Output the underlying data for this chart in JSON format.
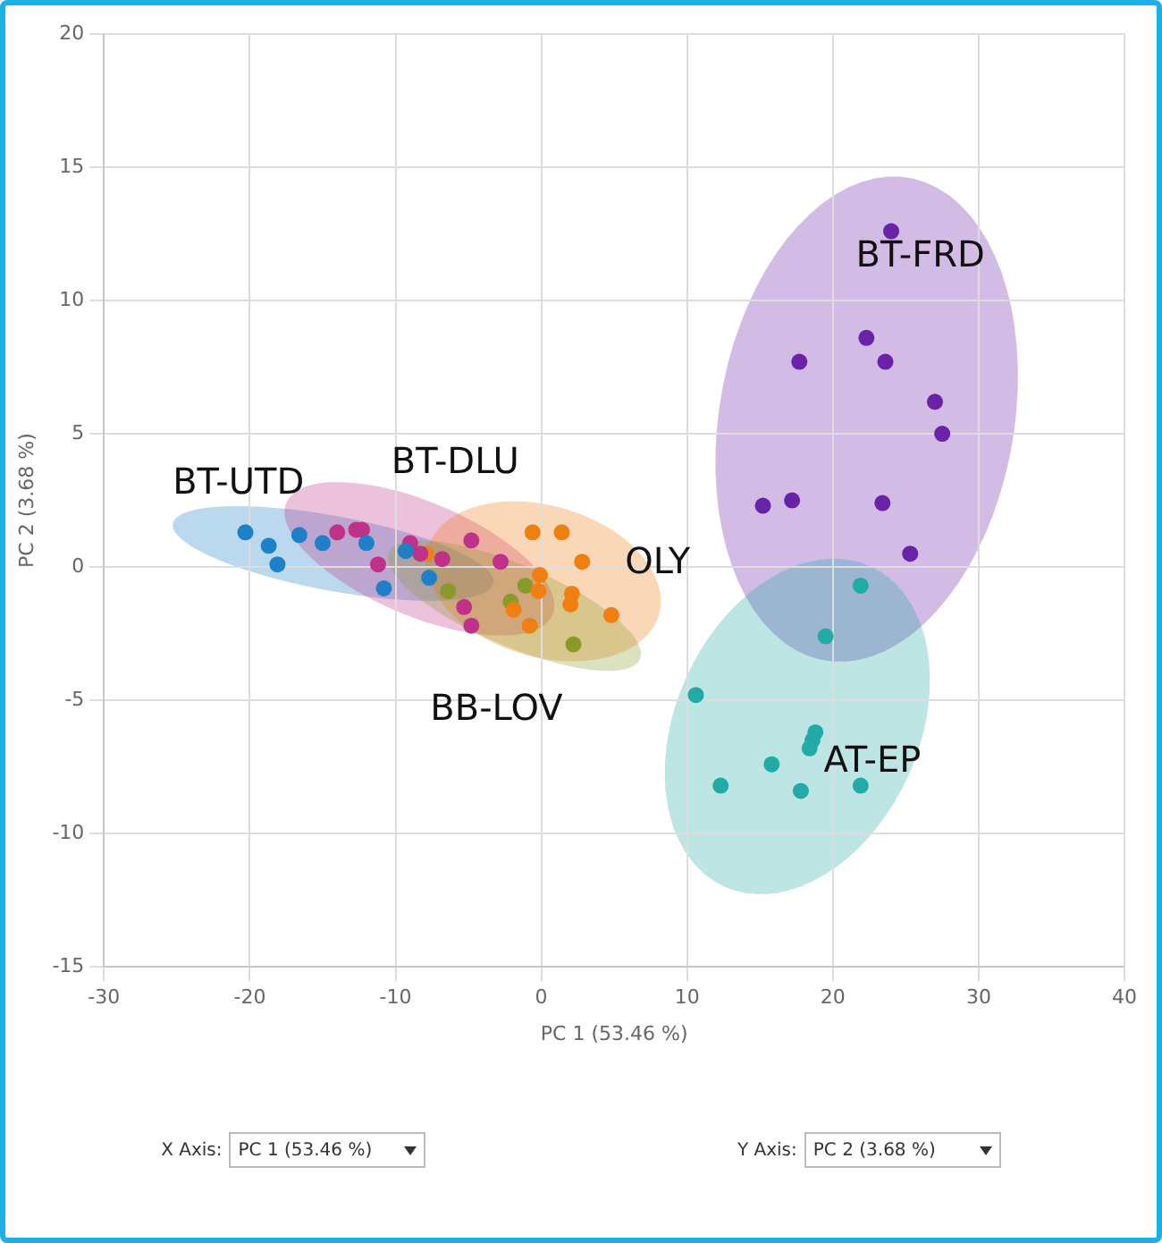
{
  "chart_data": {
    "type": "scatter",
    "xlabel": "PC 1 (53.46 %)",
    "ylabel": "PC 2 (3.68 %)",
    "xlim": [
      -30,
      40
    ],
    "xticks": [
      -30,
      -20,
      -10,
      0,
      10,
      20,
      30,
      40
    ],
    "ylim": [
      -15,
      20
    ],
    "yticks": [
      -15,
      -10,
      -5,
      0,
      5,
      10,
      15,
      20
    ],
    "grid": true,
    "legend": false,
    "marker": "circle",
    "series": [
      {
        "name": "BT-UTD",
        "color": "#1f80c8",
        "x": [
          -20.3,
          -18.7,
          -18.1,
          -16.6,
          -15.0,
          -12.0,
          -10.8,
          -7.7,
          -9.3
        ],
        "values": [
          1.3,
          0.8,
          0.1,
          1.2,
          0.9,
          0.9,
          -0.8,
          -0.4,
          0.6
        ]
      },
      {
        "name": "BT-DLU",
        "color": "#c0328a",
        "x": [
          -14.0,
          -12.7,
          -12.3,
          -11.2,
          -9.0,
          -8.3,
          -6.8,
          -4.8,
          -2.8,
          -5.3,
          -4.8
        ],
        "values": [
          1.3,
          1.4,
          1.4,
          0.1,
          0.9,
          0.5,
          0.3,
          1.0,
          0.2,
          -1.5,
          -2.2
        ]
      },
      {
        "name": "OLY",
        "color": "#f07f12",
        "x": [
          -0.6,
          1.4,
          2.8,
          -0.1,
          -0.2,
          2.1,
          2.0,
          -1.9,
          -0.8,
          4.8,
          -7.9
        ],
        "values": [
          1.3,
          1.3,
          0.2,
          -0.3,
          -0.9,
          -1.0,
          -1.4,
          -1.6,
          -2.2,
          -1.8,
          0.5
        ]
      },
      {
        "name": "BB-LOV",
        "color": "#8a9a2a",
        "x": [
          -6.4,
          -1.1,
          -2.1,
          2.2
        ],
        "values": [
          -0.9,
          -0.7,
          -1.3,
          -2.9
        ]
      },
      {
        "name": "BT-FRD",
        "color": "#6a22a8",
        "x": [
          24.0,
          22.3,
          17.7,
          23.6,
          27.0,
          27.5,
          15.2,
          17.2,
          23.4,
          25.3
        ],
        "values": [
          12.6,
          8.6,
          7.7,
          7.7,
          6.2,
          5.0,
          2.3,
          2.5,
          2.4,
          0.5
        ]
      },
      {
        "name": "AT-EP",
        "color": "#22aaa6",
        "x": [
          21.9,
          19.5,
          10.6,
          18.8,
          18.6,
          18.4,
          15.8,
          12.3,
          17.8,
          21.9
        ],
        "values": [
          -0.7,
          -2.6,
          -4.8,
          -6.2,
          -6.5,
          -6.8,
          -7.4,
          -8.2,
          -8.4,
          -8.2
        ]
      }
    ],
    "annotations": [
      "X Axis:",
      "PC 1 (53.46 %)",
      "Y Axis:",
      "PC 2 (3.68 %)"
    ]
  }
}
